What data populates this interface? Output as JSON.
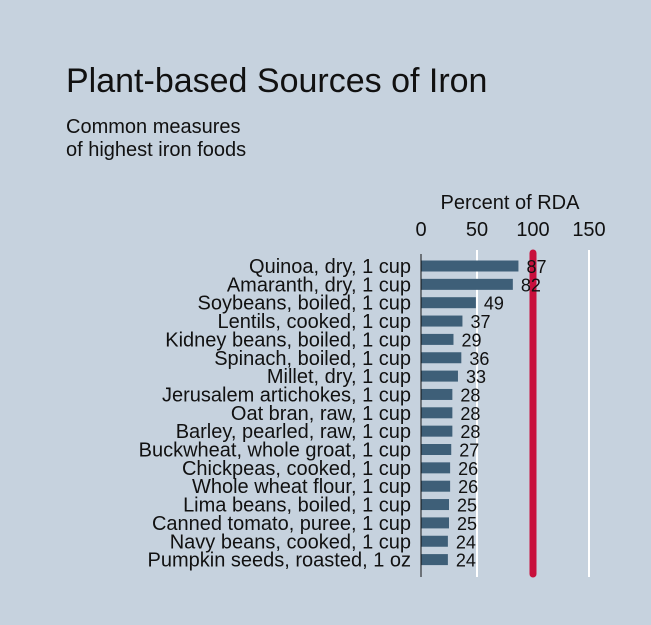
{
  "header": {
    "title": "Plant-based Sources of Iron",
    "subtitle_lines": [
      "Common measures",
      "of highest iron foods"
    ]
  },
  "colors": {
    "background": "#c6d2de",
    "bar": "#3e5f78",
    "reference_line": "#c8103c",
    "grid": "#ffffff",
    "text": "#111111"
  },
  "chart_data": {
    "type": "bar",
    "orientation": "horizontal",
    "title": "Plant-based Sources of Iron",
    "subtitle": "Common measures of highest iron foods",
    "xlabel": "Percent of RDA",
    "ylabel": "",
    "xlim": [
      0,
      150
    ],
    "xticks": [
      0,
      50,
      100,
      150
    ],
    "xtick_labels": [
      "0",
      "50",
      "100",
      "150"
    ],
    "axis_position": "top",
    "grid": true,
    "reference_line": {
      "value": 100
    },
    "categories": [
      "Quinoa, dry, 1 cup",
      "Amaranth, dry, 1 cup",
      "Soybeans, boiled, 1 cup",
      "Lentils, cooked, 1 cup",
      "Kidney beans, boiled, 1 cup",
      "Spinach, boiled, 1 cup",
      "Millet, dry, 1 cup",
      "Jerusalem artichokes, 1 cup",
      "Oat bran, raw, 1 cup",
      "Barley, pearled, raw, 1 cup",
      "Buckwheat, whole groat, 1 cup",
      "Chickpeas, cooked, 1 cup",
      "Whole wheat flour, 1 cup",
      "Lima beans, boiled, 1 cup",
      "Canned tomato, puree, 1 cup",
      "Navy beans, cooked, 1 cup",
      "Pumpkin seeds, roasted, 1 oz"
    ],
    "values": [
      87,
      82,
      49,
      37,
      29,
      36,
      33,
      28,
      28,
      28,
      27,
      26,
      26,
      25,
      25,
      24,
      24
    ],
    "data_labels": [
      "87",
      "82",
      "49",
      "37",
      "29",
      "36",
      "33",
      "28",
      "28",
      "28",
      "27",
      "26",
      "26",
      "25",
      "25",
      "24",
      "24"
    ]
  }
}
